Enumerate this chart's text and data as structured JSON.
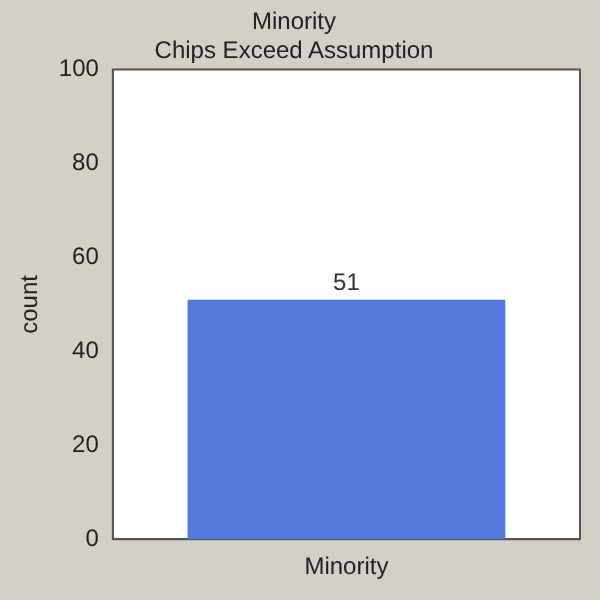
{
  "chart_data": {
    "type": "bar",
    "title": "Minority",
    "subtitle": "Chips Exceed Assumption",
    "ylabel": "count",
    "categories": [
      "Minority"
    ],
    "values": [
      51
    ],
    "color": "#5079d9",
    "ylim": [
      0,
      100
    ],
    "yticks": [
      0,
      20,
      40,
      60,
      80,
      100
    ],
    "grid": false,
    "legend": false,
    "data_labels": true
  }
}
